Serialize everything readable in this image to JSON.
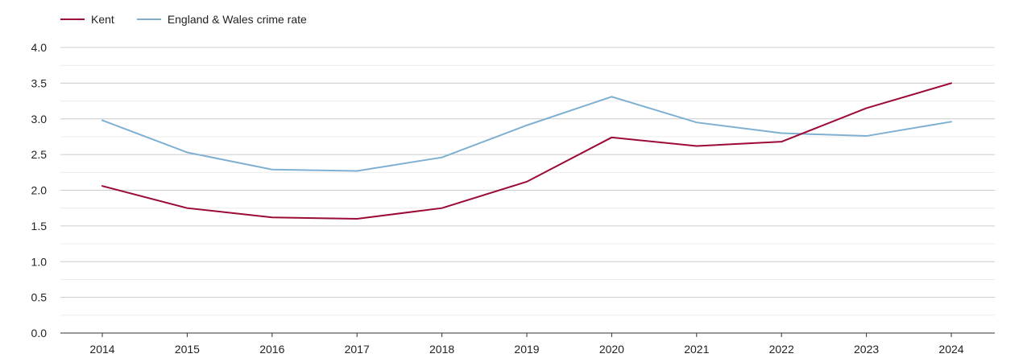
{
  "chart_data": {
    "type": "line",
    "x": [
      "2014",
      "2015",
      "2016",
      "2017",
      "2018",
      "2019",
      "2020",
      "2021",
      "2022",
      "2023",
      "2024"
    ],
    "series": [
      {
        "name": "Kent",
        "color": "#9b0b36",
        "values": [
          2.06,
          1.75,
          1.62,
          1.6,
          1.75,
          2.12,
          2.74,
          2.62,
          2.68,
          3.15,
          3.5
        ]
      },
      {
        "name": "England & Wales crime rate",
        "color": "#7fb0d2",
        "values": [
          2.98,
          2.53,
          2.29,
          2.27,
          2.46,
          2.91,
          3.31,
          2.95,
          2.8,
          2.76,
          2.96
        ]
      }
    ],
    "ylim": [
      0.0,
      4.0
    ],
    "y_ticks": [
      "0.0",
      "0.5",
      "1.0",
      "1.5",
      "2.0",
      "2.5",
      "3.0",
      "3.5",
      "4.0"
    ],
    "title": "",
    "xlabel": "",
    "ylabel": "",
    "grid": true,
    "legend_position": "top-left"
  }
}
